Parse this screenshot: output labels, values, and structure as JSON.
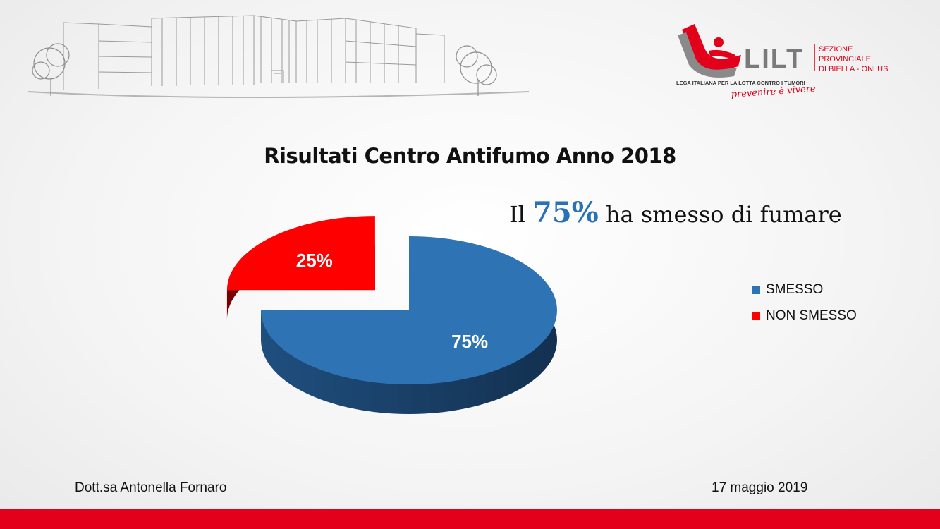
{
  "logo": {
    "name": "LILT",
    "subtitle_lines": [
      "SEZIONE",
      "PROVINCIALE",
      "DI BIELLA - ONLUS"
    ],
    "tagline": "LEGA ITALIANA PER LA LOTTA CONTRO I TUMORI",
    "motto": "prevenire è vivere"
  },
  "headline": {
    "prefix": "Il",
    "highlight": "75%",
    "suffix": "ha smesso di fumare"
  },
  "colors": {
    "smesso": "#2e74b5",
    "non_smesso": "#ff0000",
    "accent_blue": "#2a72b8",
    "bottom_bar": "#e2001a"
  },
  "chart_data": {
    "type": "pie",
    "title": "Risultati Centro Antifumo Anno 2018",
    "labels": [
      "SMESSO",
      "NON SMESSO"
    ],
    "values": [
      75,
      25
    ],
    "data_labels": [
      "75%",
      "25%"
    ],
    "legend_position": "right",
    "style": "3d-exploded"
  },
  "footer": {
    "author": "Dott.sa Antonella Fornaro",
    "date": "17 maggio 2019"
  }
}
